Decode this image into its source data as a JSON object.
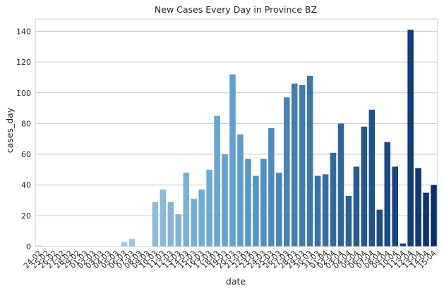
{
  "chart_data": {
    "type": "bar",
    "title": "New Cases Every Day in Province BZ",
    "xlabel": "date",
    "ylabel": "cases_day",
    "ylim": [
      0,
      148
    ],
    "yticks": [
      0,
      20,
      40,
      60,
      80,
      100,
      120,
      140
    ],
    "grid": "horizontal",
    "categories": [
      "24-02",
      "25-02",
      "26-02",
      "27-02",
      "28-02",
      "29-02",
      "01-03",
      "02-03",
      "03-03",
      "04-03",
      "05-03",
      "06-03",
      "07-03",
      "08-03",
      "09-03",
      "10-03",
      "11-03",
      "12-03",
      "13-03",
      "14-03",
      "15-03",
      "16-03",
      "17-03",
      "18-03",
      "19-03",
      "20-03",
      "21-03",
      "22-03",
      "23-03",
      "24-03",
      "25-03",
      "26-03",
      "27-03",
      "28-03",
      "29-03",
      "30-03",
      "31-03",
      "01-04",
      "02-04",
      "03-04",
      "04-04",
      "05-04",
      "06-04",
      "07-04",
      "08-04",
      "09-04",
      "10-04",
      "11-04",
      "12-04",
      "13-04",
      "14-04",
      "15-04"
    ],
    "values": [
      1,
      0,
      0,
      0,
      0,
      0,
      0,
      0,
      0,
      0,
      0,
      3,
      5,
      0,
      0,
      29,
      37,
      29,
      21,
      48,
      31,
      37,
      50,
      85,
      60,
      112,
      73,
      57,
      46,
      57,
      77,
      48,
      97,
      106,
      105,
      111,
      46,
      47,
      61,
      80,
      33,
      52,
      78,
      89,
      24,
      68,
      52,
      2,
      141,
      51,
      35,
      40
    ],
    "colors": {
      "palette_start": "#d5e5f4",
      "palette_mid": "#5d9fcd",
      "palette_end": "#08306b",
      "grid": "#cccccc",
      "axis": "#cccccc",
      "text": "#262626"
    }
  }
}
